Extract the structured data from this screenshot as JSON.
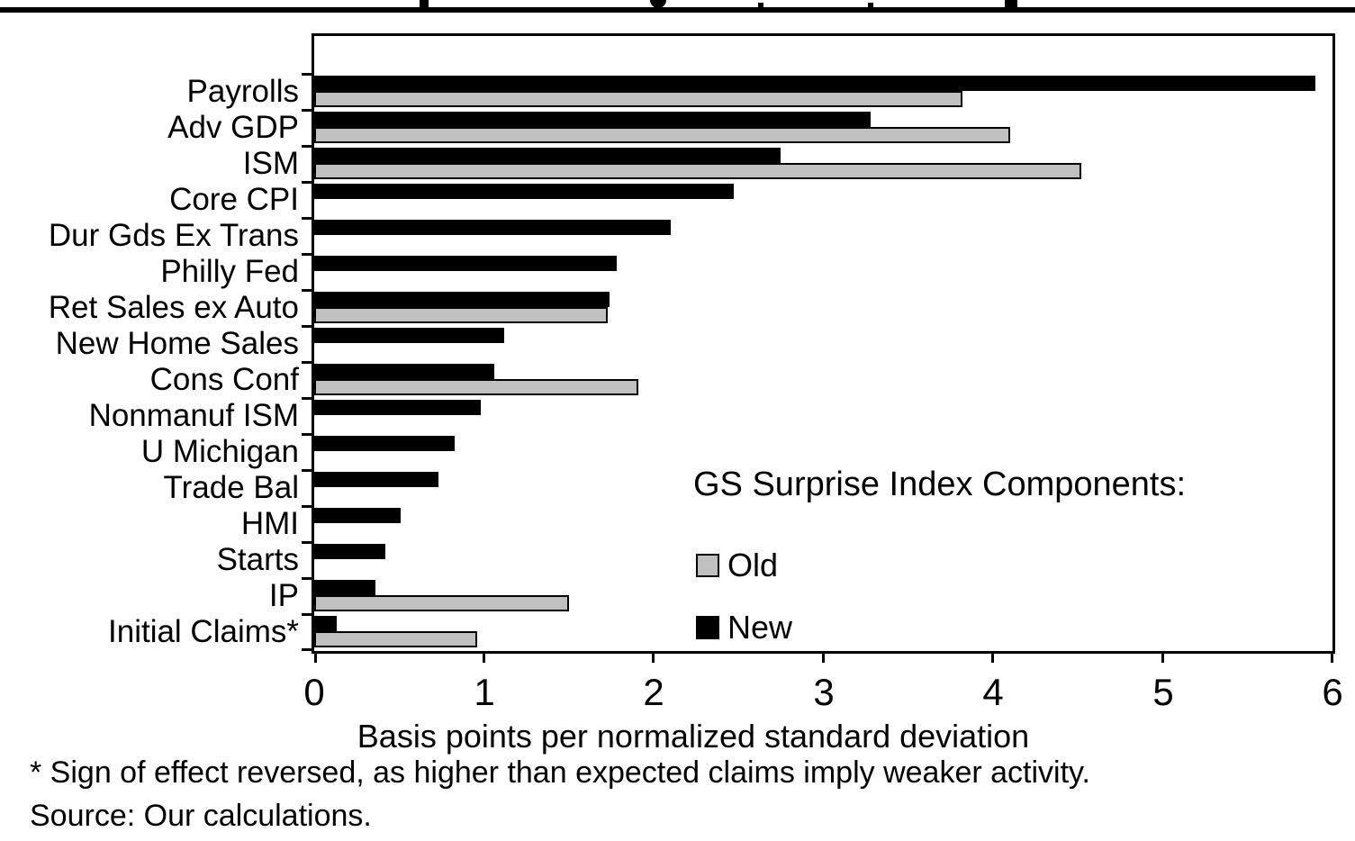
{
  "page": {
    "background": "#ffffff",
    "clipped_title_note": "Chart title is cut off at the top edge of the screenshot; only glyph fragments above a thick horizontal rule are visible"
  },
  "chart_data": {
    "type": "bar",
    "orientation": "horizontal",
    "categories": [
      "Payrolls",
      "Adv GDP",
      "ISM",
      "Core CPI",
      "Dur Gds Ex Trans",
      "Philly Fed",
      "Ret Sales ex Auto",
      "New Home Sales",
      "Cons Conf",
      "Nonmanuf ISM",
      "U Michigan",
      "Trade Bal",
      "HMI",
      "Starts",
      "IP",
      "Initial Claims*"
    ],
    "series": [
      {
        "name": "New",
        "color": "#000000",
        "values": [
          5.9,
          3.28,
          2.75,
          2.47,
          2.1,
          1.78,
          1.74,
          1.12,
          1.06,
          0.98,
          0.83,
          0.73,
          0.51,
          0.42,
          0.36,
          0.13
        ]
      },
      {
        "name": "Old",
        "color": "#c0c0c0",
        "border_color": "#000000",
        "values": [
          3.82,
          4.1,
          4.52,
          null,
          null,
          null,
          1.73,
          null,
          1.91,
          null,
          null,
          null,
          null,
          null,
          1.5,
          0.96
        ]
      }
    ],
    "bar_order_per_category": [
      "New",
      "Old"
    ],
    "xlabel": "Basis points per normalized standard deviation",
    "xlim": [
      0,
      6
    ],
    "xticks": [
      "0",
      "1",
      "2",
      "3",
      "4",
      "5",
      "6"
    ],
    "grid": "off",
    "legend": {
      "title": "GS Surprise Index Components:",
      "entries": [
        {
          "label": "Old",
          "color": "#c0c0c0"
        },
        {
          "label": "New",
          "color": "#000000"
        }
      ],
      "position": "inside lower-right of plot area"
    }
  },
  "footnotes": {
    "asterisk_note": "* Sign of effect reversed, as higher than expected claims imply weaker activity.",
    "source": "Source: Our calculations."
  }
}
